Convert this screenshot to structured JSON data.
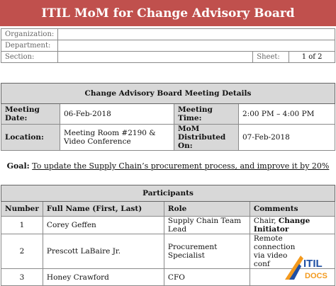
{
  "title": "ITIL MoM for Change Advisory Board",
  "info": {
    "organization_label": "Organization:",
    "department_label": "Department:",
    "section_label": "Section:",
    "sheet_label": "Sheet:",
    "sheet_value": "1 of 2"
  },
  "meeting": {
    "heading": "Change Advisory Board Meeting Details",
    "date_label": "Meeting Date:",
    "date_value": "06-Feb-2018",
    "time_label": "Meeting Time:",
    "time_value": "2:00 PM – 4:00 PM",
    "location_label": "Location:",
    "location_value": "Meeting Room #2190 & Video Conference",
    "distributed_label": "MoM Distributed On:",
    "distributed_value": "07-Feb-2018"
  },
  "goal": {
    "label": "Goal",
    "text": "To update the Supply Chain’s procurement process, and improve it by 20%"
  },
  "participants": {
    "heading": "Participants",
    "columns": [
      "Number",
      "Full Name (First, Last)",
      "Role",
      "Comments"
    ],
    "rows": [
      {
        "number": "1",
        "name": "Corey Geffen",
        "role": "Supply Chain Team Lead",
        "comment_plain": "Chair, ",
        "comment_bold": "Change Initiator"
      },
      {
        "number": "2",
        "name": "Prescott LaBaire Jr.",
        "role": "Procurement Specialist",
        "comment_plain": "Remote connection via video conf",
        "comment_bold": ""
      },
      {
        "number": "3",
        "name": "Honey Crawford",
        "role": "CFO",
        "comment_plain": "",
        "comment_bold": ""
      }
    ]
  },
  "logo": {
    "line1": "ITIL",
    "line2": "DOCS",
    "colors": {
      "blue": "#1f4fa3",
      "orange": "#f39a1e"
    }
  },
  "colors": {
    "title_bg": "#c0504d",
    "header_bg": "#d8d8d8"
  }
}
